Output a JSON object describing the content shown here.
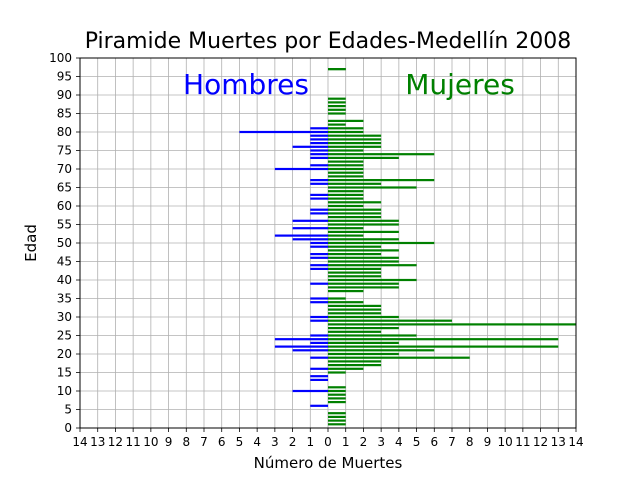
{
  "chart_data": {
    "type": "bar",
    "orientation": "horizontal",
    "title": "Piramide Muertes por Edades-Medellín 2008",
    "xlabel": "Número de Muertes",
    "ylabel": "Edad",
    "xlim": [
      -14,
      14
    ],
    "ylim": [
      0,
      100
    ],
    "xticks": [
      -14,
      -13,
      -12,
      -11,
      -10,
      -9,
      -8,
      -7,
      -6,
      -5,
      -4,
      -3,
      -2,
      -1,
      0,
      1,
      2,
      3,
      4,
      5,
      6,
      7,
      8,
      9,
      10,
      11,
      12,
      13,
      14
    ],
    "xtick_labels": [
      "14",
      "13",
      "12",
      "11",
      "10",
      "9",
      "8",
      "7",
      "6",
      "5",
      "4",
      "3",
      "2",
      "1",
      "0",
      "1",
      "2",
      "3",
      "4",
      "5",
      "6",
      "7",
      "8",
      "9",
      "10",
      "11",
      "12",
      "13",
      "14"
    ],
    "yticks": [
      0,
      5,
      10,
      15,
      20,
      25,
      30,
      35,
      40,
      45,
      50,
      55,
      60,
      65,
      70,
      75,
      80,
      85,
      90,
      95,
      100
    ],
    "grid": true,
    "series": [
      {
        "name": "Hombres",
        "color": "#0000ff",
        "ages": [
          6,
          10,
          13,
          14,
          16,
          19,
          21,
          22,
          23,
          24,
          25,
          29,
          30,
          34,
          35,
          39,
          43,
          44,
          46,
          47,
          49,
          50,
          51,
          52,
          54,
          56,
          58,
          59,
          62,
          63,
          66,
          67,
          70,
          71,
          73,
          74,
          75,
          76,
          77,
          78,
          79,
          80,
          81
        ],
        "values": [
          1,
          2,
          1,
          1,
          1,
          1,
          2,
          3,
          1,
          3,
          1,
          1,
          1,
          1,
          1,
          1,
          1,
          1,
          1,
          1,
          1,
          1,
          2,
          3,
          2,
          2,
          1,
          1,
          1,
          1,
          1,
          1,
          3,
          1,
          1,
          1,
          1,
          2,
          1,
          1,
          1,
          5,
          1
        ]
      },
      {
        "name": "Mujeres",
        "color": "#008000",
        "ages": [
          1,
          2,
          3,
          4,
          7,
          8,
          9,
          10,
          11,
          15,
          16,
          17,
          18,
          19,
          20,
          21,
          22,
          23,
          24,
          25,
          26,
          27,
          28,
          29,
          30,
          31,
          32,
          33,
          34,
          35,
          37,
          38,
          39,
          40,
          41,
          42,
          43,
          44,
          45,
          46,
          47,
          48,
          49,
          50,
          51,
          52,
          53,
          54,
          55,
          56,
          57,
          58,
          59,
          60,
          61,
          62,
          63,
          64,
          65,
          66,
          67,
          68,
          69,
          70,
          71,
          72,
          73,
          74,
          75,
          76,
          77,
          78,
          79,
          80,
          81,
          82,
          83,
          85,
          86,
          87,
          88,
          89,
          97
        ],
        "values": [
          1,
          1,
          1,
          1,
          1,
          1,
          1,
          1,
          1,
          1,
          2,
          3,
          3,
          8,
          4,
          6,
          13,
          4,
          13,
          5,
          3,
          4,
          14,
          7,
          4,
          3,
          3,
          3,
          2,
          1,
          2,
          4,
          4,
          5,
          3,
          3,
          3,
          5,
          4,
          4,
          3,
          4,
          3,
          6,
          4,
          2,
          4,
          2,
          4,
          4,
          3,
          3,
          3,
          2,
          3,
          2,
          2,
          2,
          5,
          3,
          6,
          2,
          2,
          2,
          2,
          2,
          4,
          6,
          2,
          3,
          3,
          3,
          3,
          2,
          2,
          1,
          2,
          1,
          1,
          1,
          1,
          1,
          1
        ]
      }
    ],
    "annotations": [
      {
        "text": "Hombres",
        "color": "#0000ff"
      },
      {
        "text": "Mujeres",
        "color": "#008000"
      }
    ]
  }
}
